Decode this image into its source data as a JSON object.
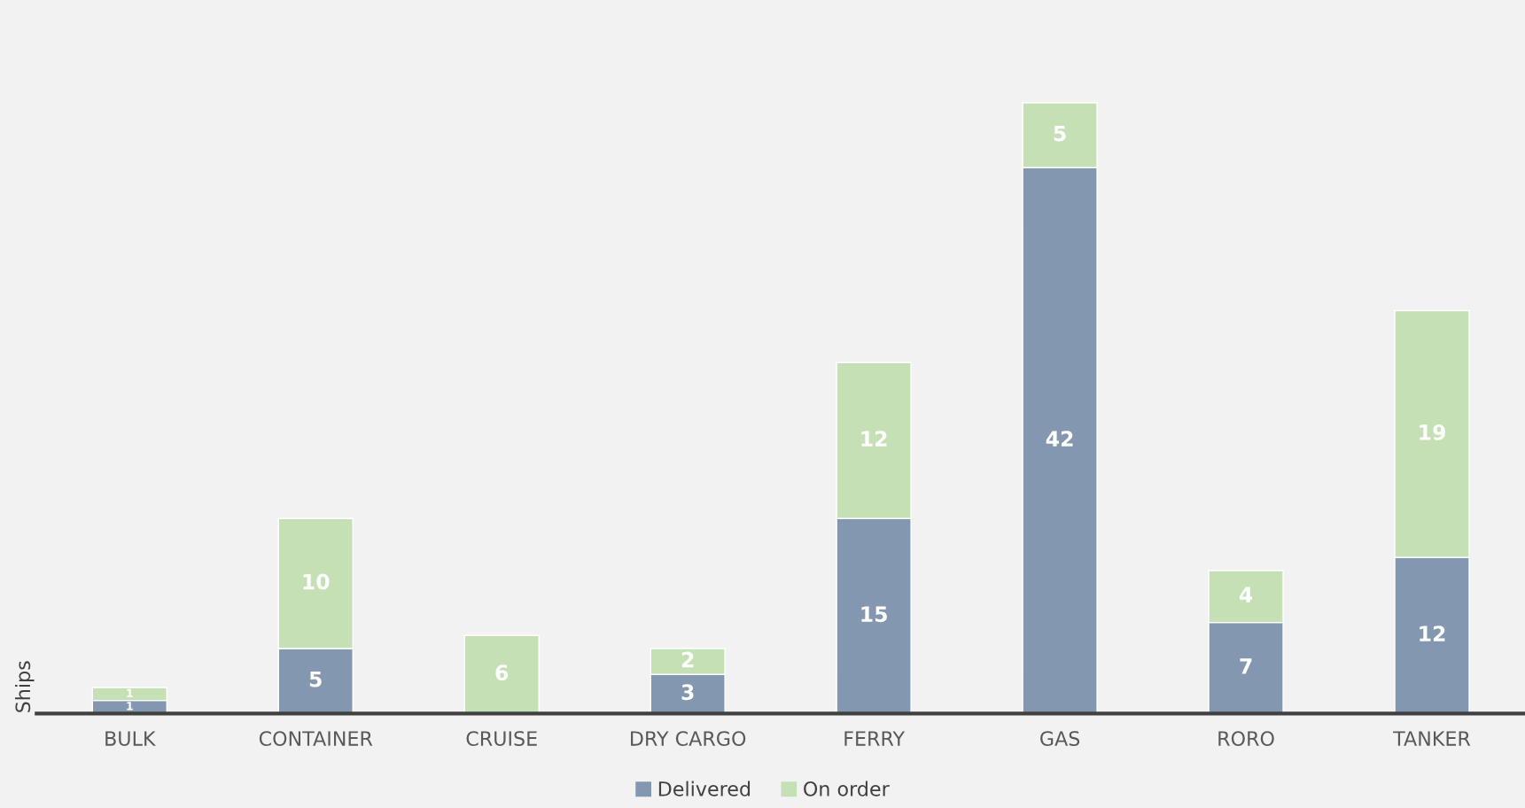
{
  "chart_data": {
    "type": "bar",
    "stacked": true,
    "ylabel": "Ships",
    "categories": [
      "BULK",
      "CONTAINER",
      "CRUISE",
      "DRY CARGO",
      "FERRY",
      "GAS",
      "RORO",
      "TANKER"
    ],
    "series": [
      {
        "name": "Delivered",
        "color": "#8497b0",
        "values": [
          1,
          5,
          null,
          3,
          15,
          42,
          7,
          12
        ]
      },
      {
        "name": "On order",
        "color": "#c5e0b4",
        "values": [
          1,
          10,
          6,
          2,
          12,
          5,
          4,
          19
        ]
      }
    ],
    "tick_labels": "x",
    "data_labels": true,
    "legend": "bottom",
    "grid": false
  }
}
